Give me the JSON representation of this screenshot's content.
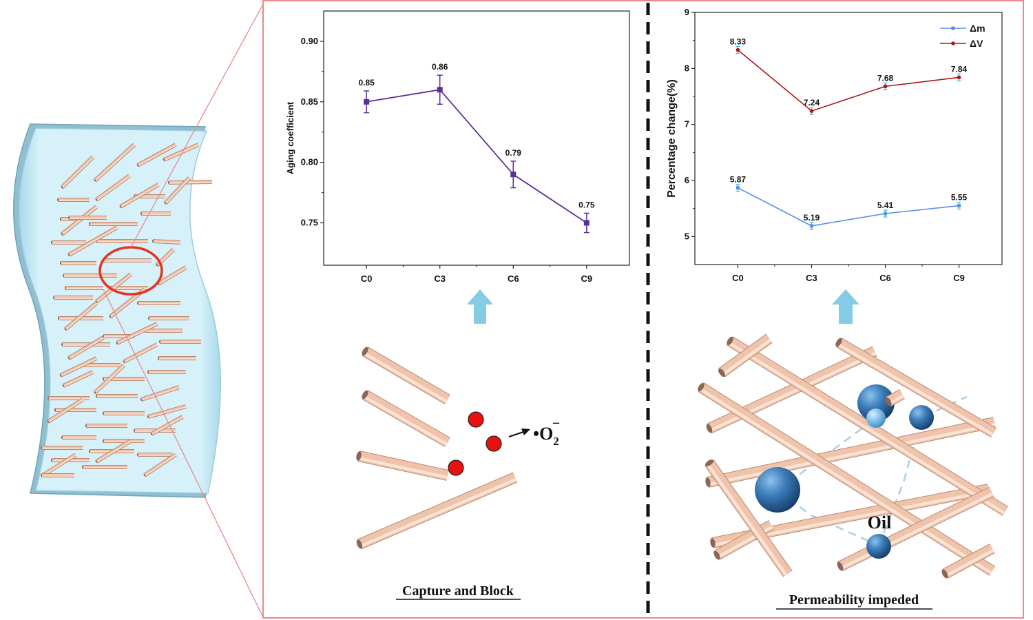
{
  "colors": {
    "frame": "#e88a8a",
    "film_fill": "#bfe6f2",
    "film_edge": "#86b9cc",
    "fiber": "#f0c3ab",
    "fiber_edge": "#c99b86",
    "circle": "#e8321e",
    "radical": "#e81010",
    "arrow_up": "#86cbe6",
    "sphere": "#2e6ea8",
    "dashed": "#a9cfe6",
    "aging_line": "#5b2d99",
    "dm_line": "#5b8ee6",
    "dv_line": "#b01414",
    "error_bar": "#38c8e8"
  },
  "chart_data": [
    {
      "type": "line",
      "ylabel": "Aging coefficient",
      "xlabel": "",
      "categories": [
        "C0",
        "C3",
        "C6",
        "C9"
      ],
      "values": [
        0.85,
        0.86,
        0.79,
        0.75
      ],
      "errors": [
        0.009,
        0.012,
        0.011,
        0.008
      ],
      "data_labels": [
        "0.85",
        "0.86",
        "0.79",
        "0.75"
      ],
      "ylim": [
        0.715,
        0.925
      ],
      "yticks": [
        0.75,
        0.8,
        0.85,
        0.9
      ],
      "ytick_labels": [
        "0.75",
        "0.80",
        "0.85",
        "0.90"
      ],
      "grid": false
    },
    {
      "type": "line",
      "ylabel": "Percentage change(%)",
      "xlabel": "",
      "categories": [
        "C0",
        "C3",
        "C6",
        "C9"
      ],
      "ylim": [
        4.5,
        9
      ],
      "yticks": [
        5,
        6,
        7,
        8,
        9
      ],
      "ytick_labels": [
        "5",
        "6",
        "7",
        "8",
        "9"
      ],
      "legend_position": "top-right",
      "grid": false,
      "series": [
        {
          "name": "Δm",
          "values": [
            5.87,
            5.19,
            5.41,
            5.55
          ],
          "labels": [
            "5.87",
            "5.19",
            "5.41",
            "5.55"
          ]
        },
        {
          "name": "ΔV",
          "values": [
            8.33,
            7.24,
            7.68,
            7.84
          ],
          "labels": [
            "8.33",
            "7.24",
            "7.68",
            "7.84"
          ]
        }
      ]
    }
  ],
  "diagram": {
    "capture_caption": "Capture and Block",
    "radical_symbol": "•O",
    "radical_subscript": "2",
    "radical_superscript": "−",
    "oil_label": "Oil",
    "permeability_caption": "Permeability impeded"
  }
}
